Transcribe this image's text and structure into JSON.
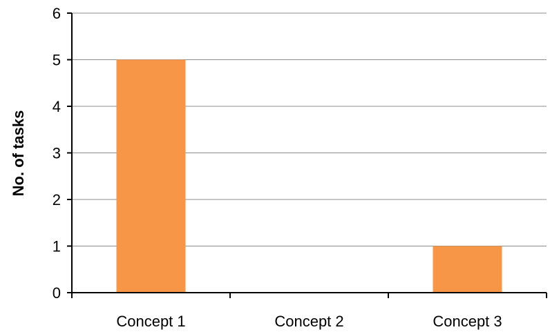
{
  "chart_data": {
    "type": "bar",
    "categories": [
      "Concept 1",
      "Concept 2",
      "Concept 3"
    ],
    "values": [
      5,
      0,
      1
    ],
    "title": "",
    "xlabel": "",
    "ylabel": "No. of tasks",
    "ylim": [
      0,
      6
    ],
    "yticks": [
      "0",
      "1",
      "2",
      "3",
      "4",
      "5",
      "6"
    ],
    "grid": "horizontal",
    "legend": "none",
    "colors": {
      "bar": "#F79646",
      "grid": "#8C8C8C",
      "axis": "#000000"
    }
  }
}
